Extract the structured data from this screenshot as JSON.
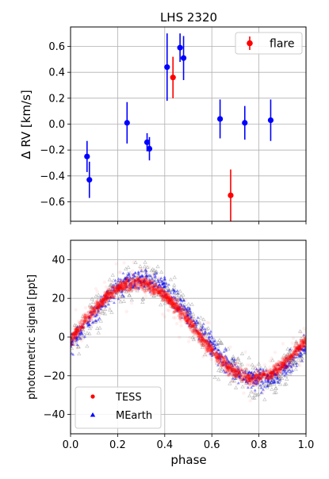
{
  "chart_data": [
    {
      "type": "scatter",
      "title": "LHS 2320",
      "xlabel": "",
      "ylabel": "Δ RV [km/s]",
      "xlim": [
        0.0,
        1.0
      ],
      "ylim": [
        -0.75,
        0.75
      ],
      "xticks": [
        0.0,
        0.2,
        0.4,
        0.6,
        0.8,
        1.0
      ],
      "yticks": [
        -0.6,
        -0.4,
        -0.2,
        0.0,
        0.2,
        0.4,
        0.6
      ],
      "ytick_labels": [
        "−0.6",
        "−0.4",
        "−0.2",
        "0.0",
        "0.2",
        "0.4",
        "0.6"
      ],
      "grid": true,
      "legend_position": "top-right",
      "series": [
        {
          "color": "#0000ff",
          "points": [
            {
              "x": 0.07,
              "y": -0.25,
              "err": 0.12
            },
            {
              "x": 0.08,
              "y": -0.43,
              "err": 0.14
            },
            {
              "x": 0.24,
              "y": 0.01,
              "err": 0.16
            },
            {
              "x": 0.325,
              "y": -0.14,
              "err": 0.07
            },
            {
              "x": 0.335,
              "y": -0.19,
              "err": 0.09
            },
            {
              "x": 0.41,
              "y": 0.44,
              "err": 0.26
            },
            {
              "x": 0.465,
              "y": 0.59,
              "err": 0.11
            },
            {
              "x": 0.48,
              "y": 0.51,
              "err": 0.17
            },
            {
              "x": 0.635,
              "y": 0.04,
              "err": 0.15
            },
            {
              "x": 0.74,
              "y": 0.01,
              "err": 0.13
            },
            {
              "x": 0.85,
              "y": 0.03,
              "err": 0.16
            }
          ]
        },
        {
          "name": "flare",
          "color": "#ff0000",
          "points": [
            {
              "x": 0.435,
              "y": 0.36,
              "err": 0.16
            },
            {
              "x": 0.68,
              "y": -0.55,
              "err": 0.2
            }
          ]
        }
      ]
    },
    {
      "type": "scatter",
      "title": "",
      "xlabel": "phase",
      "ylabel": "photometric signal [ppt]",
      "xlim": [
        0.0,
        1.0
      ],
      "ylim": [
        -50,
        50
      ],
      "xticks": [
        0.0,
        0.2,
        0.4,
        0.6,
        0.8,
        1.0
      ],
      "xtick_labels": [
        "0.0",
        "0.2",
        "0.4",
        "0.6",
        "0.8",
        "1.0"
      ],
      "yticks": [
        -40,
        -20,
        0,
        20,
        40
      ],
      "ytick_labels": [
        "−40",
        "−20",
        "0",
        "20",
        "40"
      ],
      "grid": true,
      "legend_position": "bottom-left",
      "series": [
        {
          "name": "TESS",
          "color": "#ff0000",
          "marker": "circle",
          "trend_peak": [
            0.28,
            28
          ],
          "trend_trough": [
            0.78,
            -21
          ]
        },
        {
          "name": "MEarth",
          "color": "#0000ff",
          "marker": "triangle",
          "trend_peak": [
            0.3,
            30
          ],
          "trend_trough": [
            0.78,
            -22
          ]
        }
      ]
    }
  ]
}
